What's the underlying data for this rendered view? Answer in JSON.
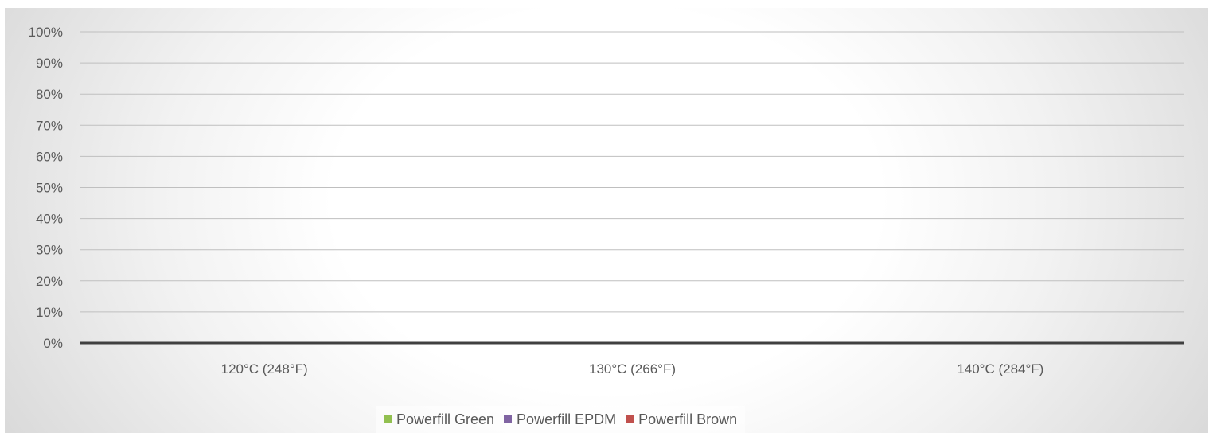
{
  "chart_data": {
    "type": "bar",
    "categories": [
      "120°C (248°F)",
      "130°C (266°F)",
      "140°C (284°F)"
    ],
    "series": [
      {
        "name": "Powerfill Green",
        "color": "#92c050",
        "values": [
          0,
          0,
          0
        ]
      },
      {
        "name": "Powerfill EPDM",
        "color": "#8064a2",
        "values": [
          0,
          0,
          0
        ]
      },
      {
        "name": "Powerfill Brown",
        "color": "#c0504d",
        "values": [
          0,
          0,
          0
        ]
      }
    ],
    "y_ticks": [
      "0%",
      "10%",
      "20%",
      "30%",
      "40%",
      "50%",
      "60%",
      "70%",
      "80%",
      "90%",
      "100%"
    ],
    "ylim": [
      0,
      100
    ],
    "y_format": "percent",
    "grid": true,
    "legend_position": "bottom",
    "title": "",
    "xlabel": "",
    "ylabel": ""
  }
}
